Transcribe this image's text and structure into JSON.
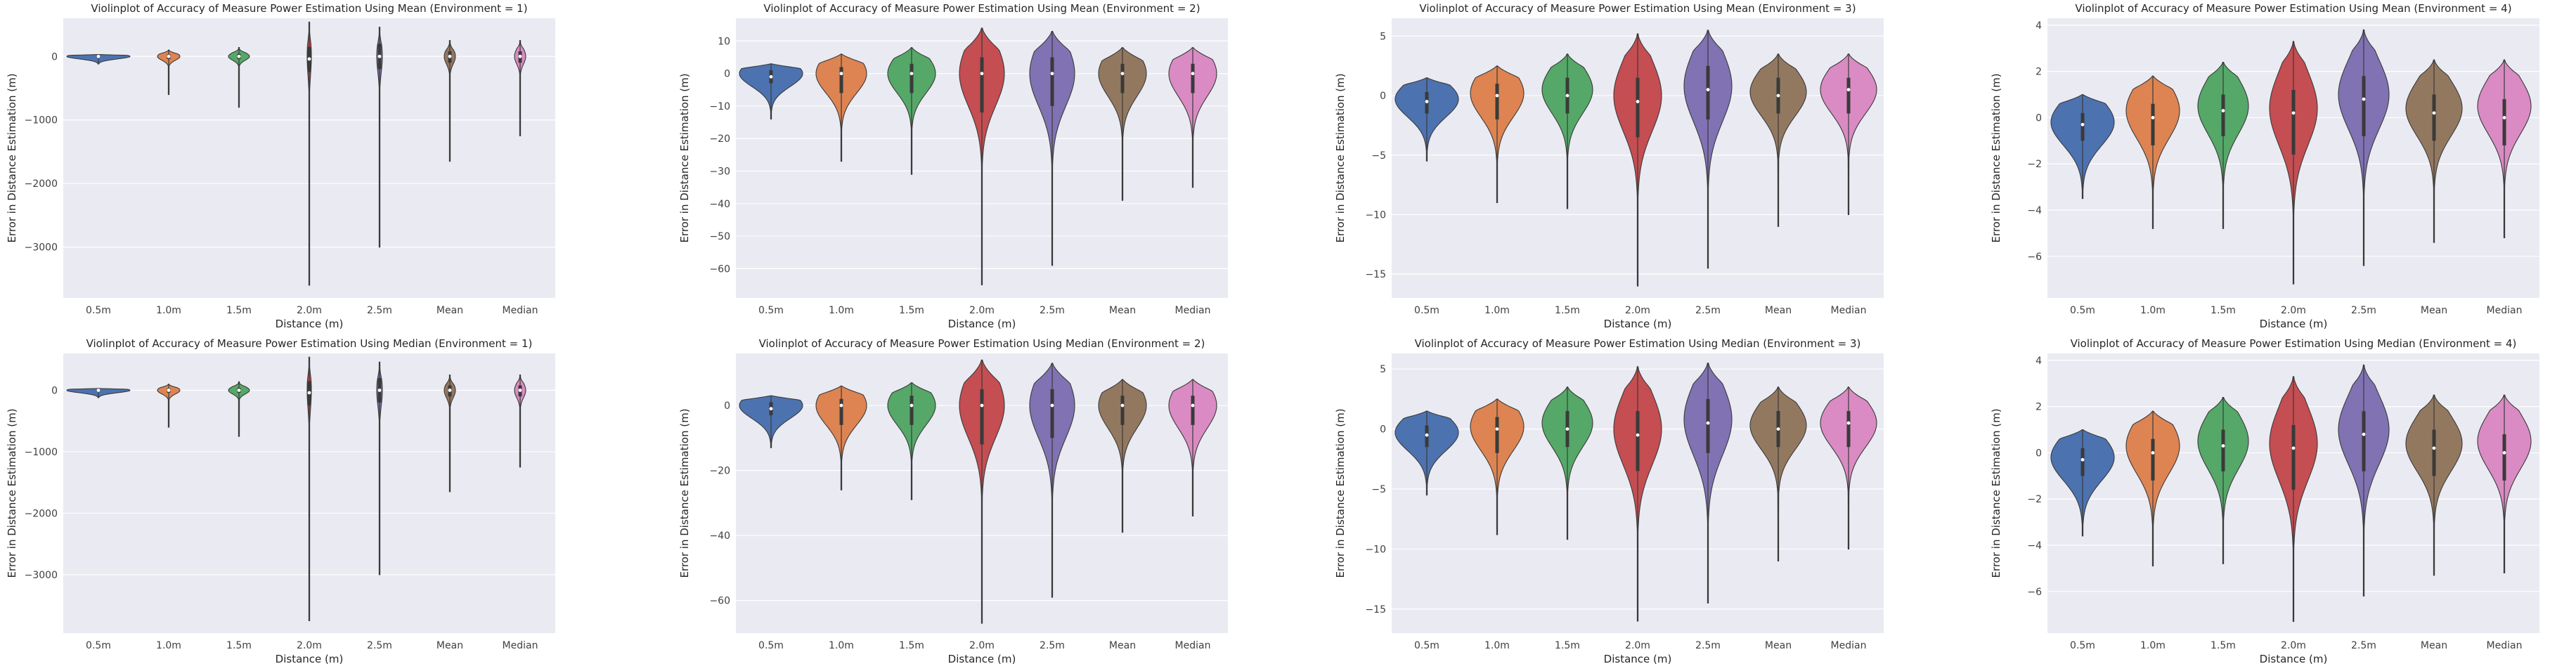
{
  "palette": {
    "background": "#eaeaf2",
    "grid": "#ffffff",
    "edge": "#3a3a3a",
    "categories": [
      "#4c72b0",
      "#dd8452",
      "#55a868",
      "#c44e52",
      "#8172b3",
      "#937860",
      "#da8bc3"
    ]
  },
  "chart_data": [
    {
      "type": "violin",
      "title": "Violinplot of Accuracy of Measure Power Estimation Using Mean (Environment = 1)",
      "xlabel": "Distance (m)",
      "ylabel": "Error in Distance Estimation (m)",
      "categories": [
        "0.5m",
        "1.0m",
        "1.5m",
        "2.0m",
        "2.5m",
        "Mean",
        "Median"
      ],
      "ylim": [
        -3800,
        600
      ],
      "yticks": [
        0,
        -1000,
        -2000,
        -3000
      ],
      "ytick_labels": [
        "0",
        "−1000",
        "−2000",
        "−3000"
      ],
      "violins": [
        {
          "min": -120,
          "max": 30,
          "median": 0,
          "q1": -20,
          "q3": 15,
          "max_half_width": 0.45,
          "bulge_center": 0,
          "bulge_spread": 40
        },
        {
          "min": -600,
          "max": 100,
          "median": 0,
          "q1": -40,
          "q3": 30,
          "max_half_width": 0.16,
          "bulge_center": 0,
          "bulge_spread": 60
        },
        {
          "min": -800,
          "max": 140,
          "median": 0,
          "q1": -40,
          "q3": 40,
          "max_half_width": 0.15,
          "bulge_center": 0,
          "bulge_spread": 60
        },
        {
          "min": -3600,
          "max": 540,
          "median": -40,
          "q1": -250,
          "q3": 150,
          "max_half_width": 0.03,
          "bulge_center": 0,
          "bulge_spread": 300
        },
        {
          "min": -3000,
          "max": 460,
          "median": 0,
          "q1": -200,
          "q3": 200,
          "max_half_width": 0.04,
          "bulge_center": 0,
          "bulge_spread": 250
        },
        {
          "min": -1650,
          "max": 250,
          "median": 0,
          "q1": -100,
          "q3": 80,
          "max_half_width": 0.08,
          "bulge_center": 0,
          "bulge_spread": 120
        },
        {
          "min": -1250,
          "max": 250,
          "median": 0,
          "q1": -100,
          "q3": 80,
          "max_half_width": 0.08,
          "bulge_center": 0,
          "bulge_spread": 120
        }
      ]
    },
    {
      "type": "violin",
      "title": "Violinplot of Accuracy of Measure Power Estimation Using Mean (Environment = 2)",
      "xlabel": "Distance (m)",
      "ylabel": "Error in Distance Estimation (m)",
      "categories": [
        "0.5m",
        "1.0m",
        "1.5m",
        "2.0m",
        "2.5m",
        "Mean",
        "Median"
      ],
      "ylim": [
        -69,
        17
      ],
      "yticks": [
        10,
        0,
        -10,
        -20,
        -30,
        -40,
        -50,
        -60
      ],
      "ytick_labels": [
        "10",
        "0",
        "−10",
        "−20",
        "−30",
        "−40",
        "−50",
        "−60"
      ],
      "violins": [
        {
          "min": -14,
          "max": 3,
          "median": -1,
          "q1": -3,
          "q3": 1,
          "max_half_width": 0.45,
          "bulge_center": 0,
          "bulge_spread": 4
        },
        {
          "min": -27,
          "max": 6,
          "median": 0,
          "q1": -6,
          "q3": 2,
          "max_half_width": 0.36,
          "bulge_center": 0,
          "bulge_spread": 6
        },
        {
          "min": -31,
          "max": 8,
          "median": 0,
          "q1": -6,
          "q3": 3,
          "max_half_width": 0.34,
          "bulge_center": 0,
          "bulge_spread": 6
        },
        {
          "min": -65,
          "max": 14,
          "median": 0,
          "q1": -12,
          "q3": 5,
          "max_half_width": 0.32,
          "bulge_center": 0,
          "bulge_spread": 10
        },
        {
          "min": -59,
          "max": 13,
          "median": 0,
          "q1": -10,
          "q3": 5,
          "max_half_width": 0.32,
          "bulge_center": 0,
          "bulge_spread": 10
        },
        {
          "min": -39,
          "max": 8,
          "median": 0,
          "q1": -6,
          "q3": 3,
          "max_half_width": 0.34,
          "bulge_center": 0,
          "bulge_spread": 7
        },
        {
          "min": -35,
          "max": 8,
          "median": 0,
          "q1": -6,
          "q3": 3,
          "max_half_width": 0.34,
          "bulge_center": 0,
          "bulge_spread": 7
        }
      ]
    },
    {
      "type": "violin",
      "title": "Violinplot of Accuracy of Measure Power Estimation Using Mean (Environment = 3)",
      "xlabel": "Distance (m)",
      "ylabel": "Error in Distance Estimation (m)",
      "categories": [
        "0.5m",
        "1.0m",
        "1.5m",
        "2.0m",
        "2.5m",
        "Mean",
        "Median"
      ],
      "ylim": [
        -17,
        6.5
      ],
      "yticks": [
        5,
        0,
        -5,
        -10,
        -15
      ],
      "ytick_labels": [
        "5",
        "0",
        "−5",
        "−10",
        "−15"
      ],
      "violins": [
        {
          "min": -5.5,
          "max": 1.5,
          "median": -0.5,
          "q1": -1.5,
          "q3": 0.3,
          "max_half_width": 0.45,
          "bulge_center": -0.3,
          "bulge_spread": 1.5
        },
        {
          "min": -9,
          "max": 2.5,
          "median": 0,
          "q1": -2,
          "q3": 1,
          "max_half_width": 0.38,
          "bulge_center": 0.2,
          "bulge_spread": 2
        },
        {
          "min": -9.5,
          "max": 3.5,
          "median": 0,
          "q1": -1.5,
          "q3": 1.5,
          "max_half_width": 0.36,
          "bulge_center": 0.5,
          "bulge_spread": 2
        },
        {
          "min": -16,
          "max": 5.2,
          "median": -0.5,
          "q1": -3.5,
          "q3": 1.5,
          "max_half_width": 0.34,
          "bulge_center": 0,
          "bulge_spread": 3
        },
        {
          "min": -14.5,
          "max": 5.5,
          "median": 0.5,
          "q1": -2,
          "q3": 2.5,
          "max_half_width": 0.34,
          "bulge_center": 0.8,
          "bulge_spread": 3
        },
        {
          "min": -11,
          "max": 3.5,
          "median": 0,
          "q1": -1.5,
          "q3": 1.5,
          "max_half_width": 0.4,
          "bulge_center": 0.3,
          "bulge_spread": 2
        },
        {
          "min": -10,
          "max": 3.5,
          "median": 0.5,
          "q1": -1.5,
          "q3": 1.5,
          "max_half_width": 0.4,
          "bulge_center": 0.5,
          "bulge_spread": 2
        }
      ]
    },
    {
      "type": "violin",
      "title": "Violinplot of Accuracy of Measure Power Estimation Using Mean (Environment = 4)",
      "xlabel": "Distance (m)",
      "ylabel": "Error in Distance Estimation (m)",
      "categories": [
        "0.5m",
        "1.0m",
        "1.5m",
        "2.0m",
        "2.5m",
        "Mean",
        "Median"
      ],
      "ylim": [
        -7.8,
        4.3
      ],
      "yticks": [
        4,
        2,
        0,
        -2,
        -4,
        -6
      ],
      "ytick_labels": [
        "4",
        "2",
        "0",
        "−2",
        "−4",
        "−6"
      ],
      "violins": [
        {
          "min": -3.5,
          "max": 1,
          "median": -0.3,
          "q1": -1,
          "q3": 0.2,
          "max_half_width": 0.45,
          "bulge_center": -0.2,
          "bulge_spread": 1
        },
        {
          "min": -4.8,
          "max": 1.8,
          "median": 0,
          "q1": -1.2,
          "q3": 0.6,
          "max_half_width": 0.38,
          "bulge_center": 0.3,
          "bulge_spread": 1.2
        },
        {
          "min": -4.8,
          "max": 2.4,
          "median": 0.3,
          "q1": -0.8,
          "q3": 1,
          "max_half_width": 0.36,
          "bulge_center": 0.5,
          "bulge_spread": 1.2
        },
        {
          "min": -7.2,
          "max": 3.3,
          "median": 0.2,
          "q1": -1.6,
          "q3": 1.2,
          "max_half_width": 0.34,
          "bulge_center": 0.4,
          "bulge_spread": 1.6
        },
        {
          "min": -6.4,
          "max": 3.8,
          "median": 0.8,
          "q1": -0.8,
          "q3": 1.8,
          "max_half_width": 0.36,
          "bulge_center": 1,
          "bulge_spread": 1.5
        },
        {
          "min": -5.4,
          "max": 2.5,
          "median": 0.2,
          "q1": -1,
          "q3": 1,
          "max_half_width": 0.4,
          "bulge_center": 0.4,
          "bulge_spread": 1.2
        },
        {
          "min": -5.2,
          "max": 2.5,
          "median": 0,
          "q1": -1.2,
          "q3": 0.8,
          "max_half_width": 0.38,
          "bulge_center": 0.5,
          "bulge_spread": 1.2
        }
      ]
    },
    {
      "type": "violin",
      "title": "Violinplot of Accuracy of Measure Power Estimation Using Median (Environment = 1)",
      "xlabel": "Distance (m)",
      "ylabel": "Error in Distance Estimation (m)",
      "categories": [
        "0.5m",
        "1.0m",
        "1.5m",
        "2.0m",
        "2.5m",
        "Mean",
        "Median"
      ],
      "ylim": [
        -3950,
        600
      ],
      "yticks": [
        0,
        -1000,
        -2000,
        -3000
      ],
      "ytick_labels": [
        "0",
        "−1000",
        "−2000",
        "−3000"
      ],
      "violins": [
        {
          "min": -120,
          "max": 30,
          "median": 0,
          "q1": -20,
          "q3": 15,
          "max_half_width": 0.45,
          "bulge_center": 0,
          "bulge_spread": 40
        },
        {
          "min": -600,
          "max": 100,
          "median": 0,
          "q1": -40,
          "q3": 30,
          "max_half_width": 0.16,
          "bulge_center": 0,
          "bulge_spread": 60
        },
        {
          "min": -750,
          "max": 140,
          "median": 0,
          "q1": -40,
          "q3": 40,
          "max_half_width": 0.15,
          "bulge_center": 0,
          "bulge_spread": 60
        },
        {
          "min": -3750,
          "max": 540,
          "median": -40,
          "q1": -250,
          "q3": 150,
          "max_half_width": 0.03,
          "bulge_center": 0,
          "bulge_spread": 300
        },
        {
          "min": -3000,
          "max": 460,
          "median": 0,
          "q1": -200,
          "q3": 200,
          "max_half_width": 0.04,
          "bulge_center": 0,
          "bulge_spread": 250
        },
        {
          "min": -1650,
          "max": 250,
          "median": 0,
          "q1": -100,
          "q3": 80,
          "max_half_width": 0.08,
          "bulge_center": 0,
          "bulge_spread": 120
        },
        {
          "min": -1250,
          "max": 250,
          "median": 0,
          "q1": -100,
          "q3": 80,
          "max_half_width": 0.08,
          "bulge_center": 0,
          "bulge_spread": 120
        }
      ]
    },
    {
      "type": "violin",
      "title": "Violinplot of Accuracy of Measure Power Estimation Using Median (Environment = 2)",
      "xlabel": "Distance (m)",
      "ylabel": "Error in Distance Estimation (m)",
      "categories": [
        "0.5m",
        "1.0m",
        "1.5m",
        "2.0m",
        "2.5m",
        "Mean",
        "Median"
      ],
      "ylim": [
        -70,
        16
      ],
      "yticks": [
        0,
        -20,
        -40,
        -60
      ],
      "ytick_labels": [
        "0",
        "−20",
        "−40",
        "−60"
      ],
      "violins": [
        {
          "min": -13,
          "max": 3,
          "median": -1,
          "q1": -3,
          "q3": 1,
          "max_half_width": 0.45,
          "bulge_center": 0,
          "bulge_spread": 4
        },
        {
          "min": -26,
          "max": 6,
          "median": 0,
          "q1": -6,
          "q3": 2,
          "max_half_width": 0.36,
          "bulge_center": 0,
          "bulge_spread": 6
        },
        {
          "min": -29,
          "max": 7,
          "median": 0,
          "q1": -6,
          "q3": 3,
          "max_half_width": 0.34,
          "bulge_center": 0,
          "bulge_spread": 6
        },
        {
          "min": -67,
          "max": 14,
          "median": 0,
          "q1": -12,
          "q3": 5,
          "max_half_width": 0.32,
          "bulge_center": 0,
          "bulge_spread": 10
        },
        {
          "min": -59,
          "max": 13,
          "median": 0,
          "q1": -10,
          "q3": 5,
          "max_half_width": 0.32,
          "bulge_center": 0,
          "bulge_spread": 10
        },
        {
          "min": -39,
          "max": 8,
          "median": 0,
          "q1": -6,
          "q3": 3,
          "max_half_width": 0.34,
          "bulge_center": 0,
          "bulge_spread": 7
        },
        {
          "min": -34,
          "max": 8,
          "median": 0,
          "q1": -6,
          "q3": 3,
          "max_half_width": 0.34,
          "bulge_center": 0,
          "bulge_spread": 7
        }
      ]
    },
    {
      "type": "violin",
      "title": "Violinplot of Accuracy of Measure Power Estimation Using Median (Environment = 3)",
      "xlabel": "Distance (m)",
      "ylabel": "Error in Distance Estimation (m)",
      "categories": [
        "0.5m",
        "1.0m",
        "1.5m",
        "2.0m",
        "2.5m",
        "Mean",
        "Median"
      ],
      "ylim": [
        -17,
        6.3
      ],
      "yticks": [
        5,
        0,
        -5,
        -10,
        -15
      ],
      "ytick_labels": [
        "5",
        "0",
        "−5",
        "−10",
        "−15"
      ],
      "violins": [
        {
          "min": -5.5,
          "max": 1.5,
          "median": -0.5,
          "q1": -1.5,
          "q3": 0.3,
          "max_half_width": 0.45,
          "bulge_center": -0.3,
          "bulge_spread": 1.5
        },
        {
          "min": -8.8,
          "max": 2.5,
          "median": 0,
          "q1": -2,
          "q3": 1,
          "max_half_width": 0.38,
          "bulge_center": 0.2,
          "bulge_spread": 2
        },
        {
          "min": -9.2,
          "max": 3.5,
          "median": 0,
          "q1": -1.5,
          "q3": 1.5,
          "max_half_width": 0.36,
          "bulge_center": 0.5,
          "bulge_spread": 2
        },
        {
          "min": -16,
          "max": 5.2,
          "median": -0.5,
          "q1": -3.5,
          "q3": 1.5,
          "max_half_width": 0.34,
          "bulge_center": 0,
          "bulge_spread": 3
        },
        {
          "min": -14.5,
          "max": 5.5,
          "median": 0.5,
          "q1": -2,
          "q3": 2.5,
          "max_half_width": 0.34,
          "bulge_center": 0.8,
          "bulge_spread": 3
        },
        {
          "min": -11,
          "max": 3.5,
          "median": 0,
          "q1": -1.5,
          "q3": 1.5,
          "max_half_width": 0.4,
          "bulge_center": 0.3,
          "bulge_spread": 2
        },
        {
          "min": -10,
          "max": 3.5,
          "median": 0.5,
          "q1": -1.5,
          "q3": 1.5,
          "max_half_width": 0.4,
          "bulge_center": 0.5,
          "bulge_spread": 2
        }
      ]
    },
    {
      "type": "violin",
      "title": "Violinplot of Accuracy of Measure Power Estimation Using Median (Environment = 4)",
      "xlabel": "Distance (m)",
      "ylabel": "Error in Distance Estimation (m)",
      "categories": [
        "0.5m",
        "1.0m",
        "1.5m",
        "2.0m",
        "2.5m",
        "Mean",
        "Median"
      ],
      "ylim": [
        -7.8,
        4.3
      ],
      "yticks": [
        4,
        2,
        0,
        -2,
        -4,
        -6
      ],
      "ytick_labels": [
        "4",
        "2",
        "0",
        "−2",
        "−4",
        "−6"
      ],
      "violins": [
        {
          "min": -3.6,
          "max": 1,
          "median": -0.3,
          "q1": -1,
          "q3": 0.2,
          "max_half_width": 0.45,
          "bulge_center": -0.2,
          "bulge_spread": 1
        },
        {
          "min": -4.9,
          "max": 1.8,
          "median": 0,
          "q1": -1.2,
          "q3": 0.6,
          "max_half_width": 0.38,
          "bulge_center": 0.3,
          "bulge_spread": 1.2
        },
        {
          "min": -4.8,
          "max": 2.4,
          "median": 0.3,
          "q1": -0.8,
          "q3": 1,
          "max_half_width": 0.36,
          "bulge_center": 0.5,
          "bulge_spread": 1.2
        },
        {
          "min": -7.3,
          "max": 3.3,
          "median": 0.2,
          "q1": -1.6,
          "q3": 1.2,
          "max_half_width": 0.34,
          "bulge_center": 0.4,
          "bulge_spread": 1.6
        },
        {
          "min": -6.2,
          "max": 3.8,
          "median": 0.8,
          "q1": -0.8,
          "q3": 1.8,
          "max_half_width": 0.36,
          "bulge_center": 1,
          "bulge_spread": 1.5
        },
        {
          "min": -5.3,
          "max": 2.5,
          "median": 0.2,
          "q1": -1,
          "q3": 1,
          "max_half_width": 0.4,
          "bulge_center": 0.4,
          "bulge_spread": 1.2
        },
        {
          "min": -5.2,
          "max": 2.5,
          "median": 0,
          "q1": -1.2,
          "q3": 0.8,
          "max_half_width": 0.38,
          "bulge_center": 0.5,
          "bulge_spread": 1.2
        }
      ]
    }
  ]
}
